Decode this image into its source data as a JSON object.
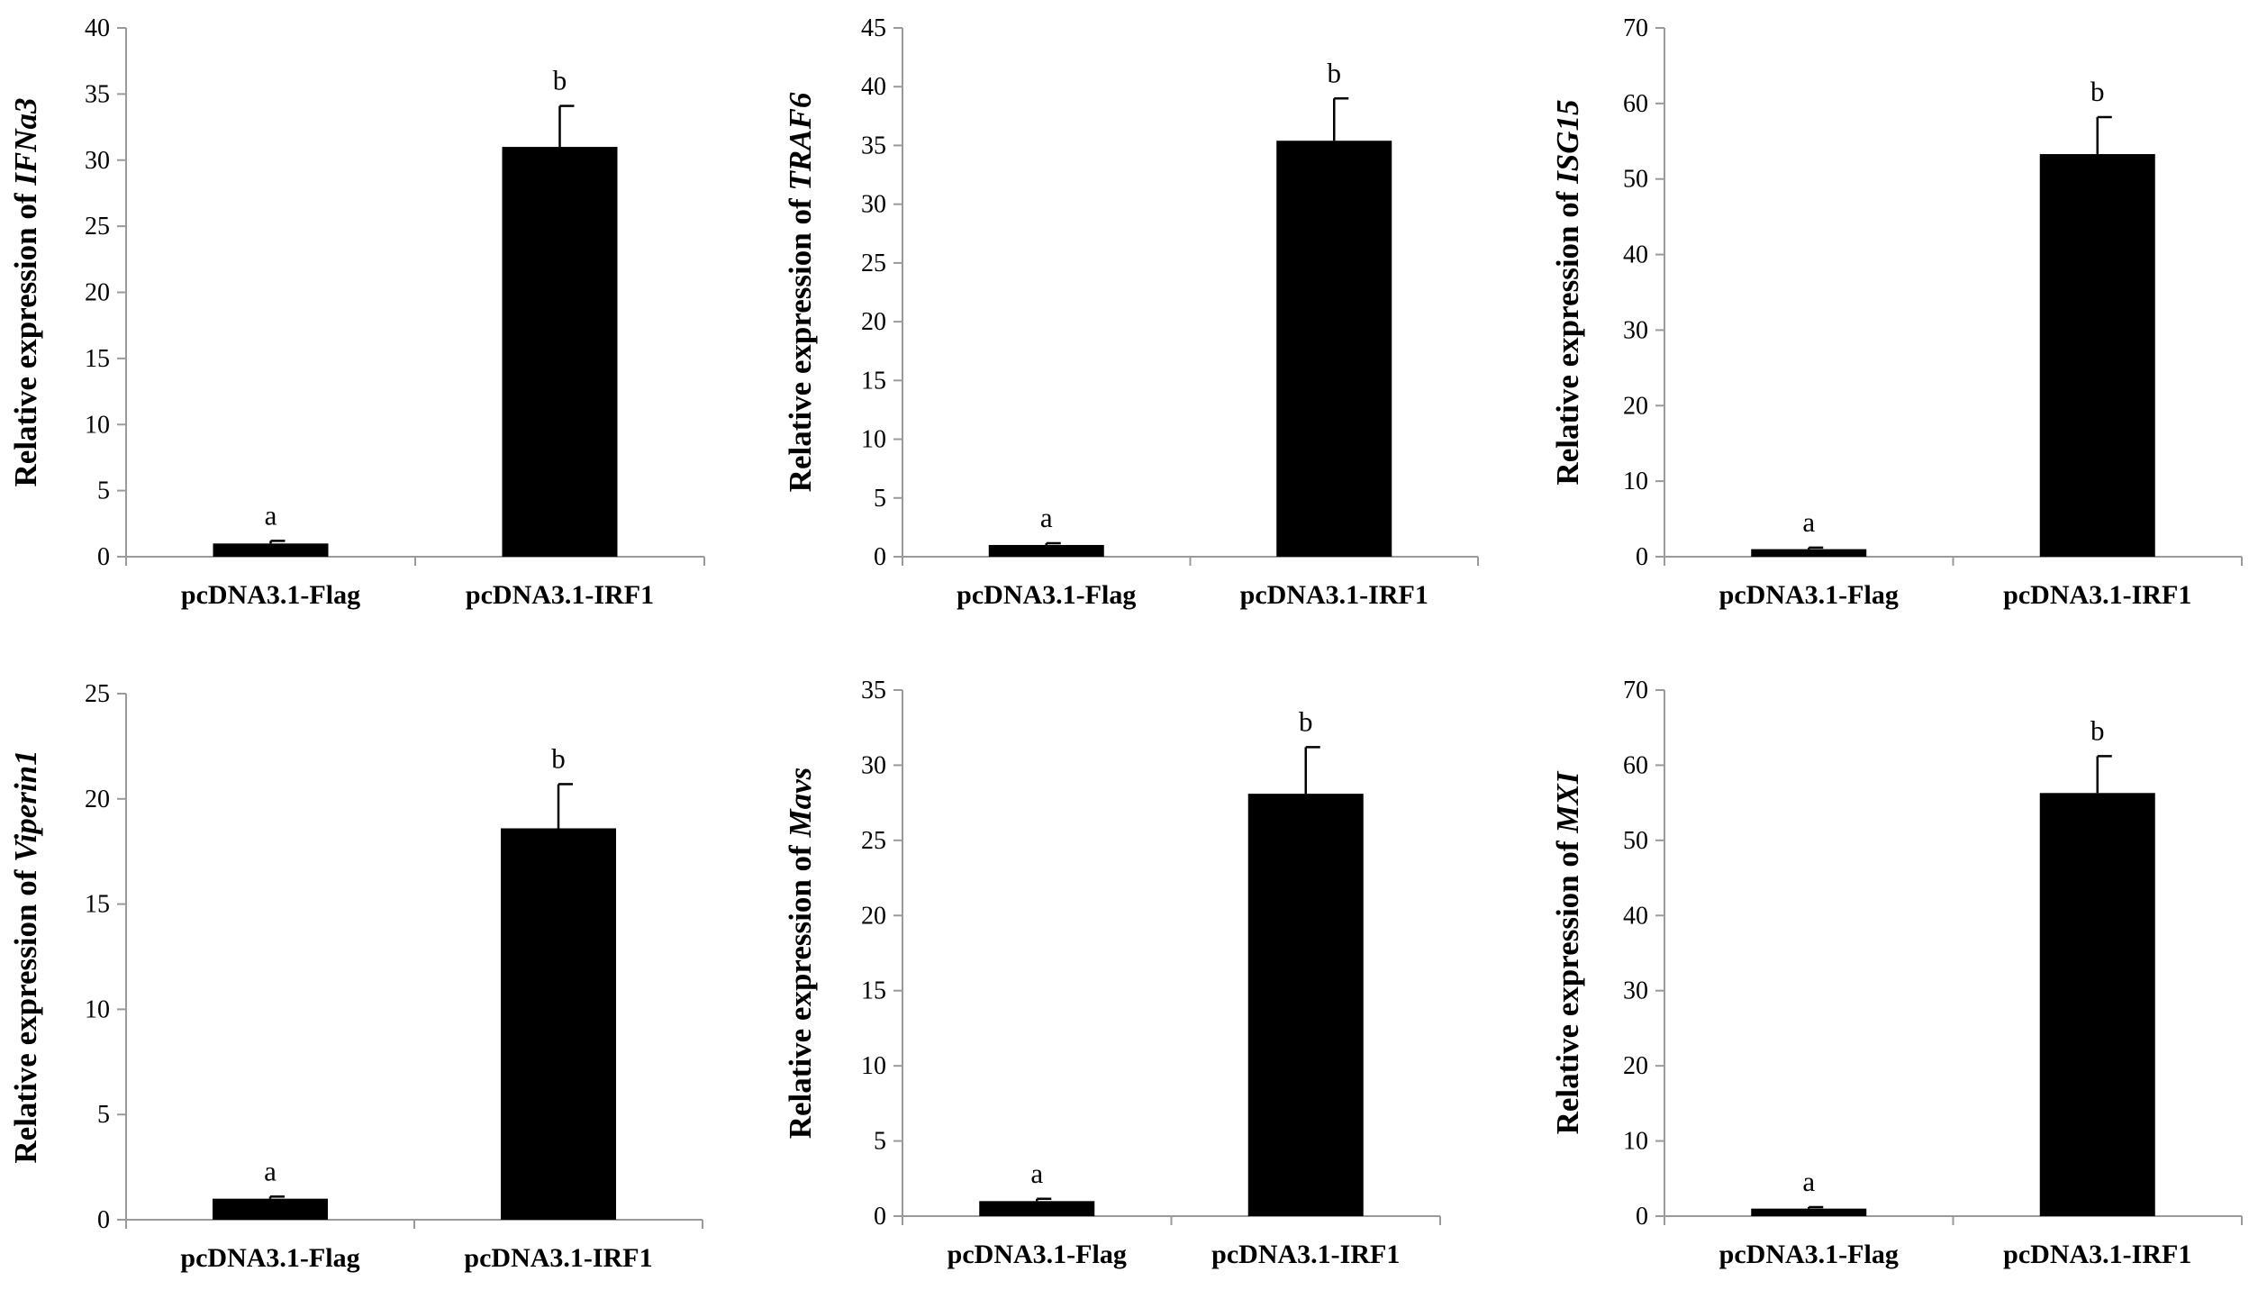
{
  "chart_data": [
    {
      "type": "bar",
      "categories": [
        "pcDNA3.1-Flag",
        "pcDNA3.1-IRF1"
      ],
      "values": [
        1,
        31
      ],
      "errors": [
        0.2,
        3.1
      ],
      "significance": [
        "a",
        "b"
      ],
      "ylabel_prefix": "Relative expression of ",
      "gene": "IFNa3",
      "ylim": [
        0,
        40
      ],
      "yticks": [
        0,
        5,
        10,
        15,
        20,
        25,
        30,
        35,
        40
      ]
    },
    {
      "type": "bar",
      "categories": [
        "pcDNA3.1-Flag",
        "pcDNA3.1-IRF1"
      ],
      "values": [
        1,
        35.4
      ],
      "errors": [
        0.15,
        3.6
      ],
      "significance": [
        "a",
        "b"
      ],
      "ylabel_prefix": "Relative expression of ",
      "gene": "TRAF6",
      "ylim": [
        0,
        45
      ],
      "yticks": [
        0,
        5,
        10,
        15,
        20,
        25,
        30,
        35,
        40,
        45
      ]
    },
    {
      "type": "bar",
      "categories": [
        "pcDNA3.1-Flag",
        "pcDNA3.1-IRF1"
      ],
      "values": [
        1,
        53.3
      ],
      "errors": [
        0.2,
        4.9
      ],
      "significance": [
        "a",
        "b"
      ],
      "ylabel_prefix": "Relative expression of ",
      "gene": "ISG15",
      "ylim": [
        0,
        70
      ],
      "yticks": [
        0,
        10,
        20,
        30,
        40,
        50,
        60,
        70
      ]
    },
    {
      "type": "bar",
      "categories": [
        "pcDNA3.1-Flag",
        "pcDNA3.1-IRF1"
      ],
      "values": [
        1,
        18.6
      ],
      "errors": [
        0.1,
        2.1
      ],
      "significance": [
        "a",
        "b"
      ],
      "ylabel_prefix": "Relative expression of ",
      "gene": "Viperin1",
      "ylim": [
        0,
        25
      ],
      "yticks": [
        0,
        5,
        10,
        15,
        20,
        25
      ]
    },
    {
      "type": "bar",
      "categories": [
        "pcDNA3.1-Flag",
        "pcDNA3.1-IRF1"
      ],
      "values": [
        1,
        28.1
      ],
      "errors": [
        0.15,
        3.1
      ],
      "significance": [
        "a",
        "b"
      ],
      "ylabel_prefix": "Relative expression of ",
      "gene": "Mavs",
      "ylim": [
        0,
        35
      ],
      "yticks": [
        0,
        5,
        10,
        15,
        20,
        25,
        30,
        35
      ]
    },
    {
      "type": "bar",
      "categories": [
        "pcDNA3.1-Flag",
        "pcDNA3.1-IRF1"
      ],
      "values": [
        1,
        56.3
      ],
      "errors": [
        0.2,
        4.9
      ],
      "significance": [
        "a",
        "b"
      ],
      "ylabel_prefix": "Relative expression of ",
      "gene": "MXI",
      "ylim": [
        0,
        70
      ],
      "yticks": [
        0,
        10,
        20,
        30,
        40,
        50,
        60,
        70
      ]
    }
  ]
}
